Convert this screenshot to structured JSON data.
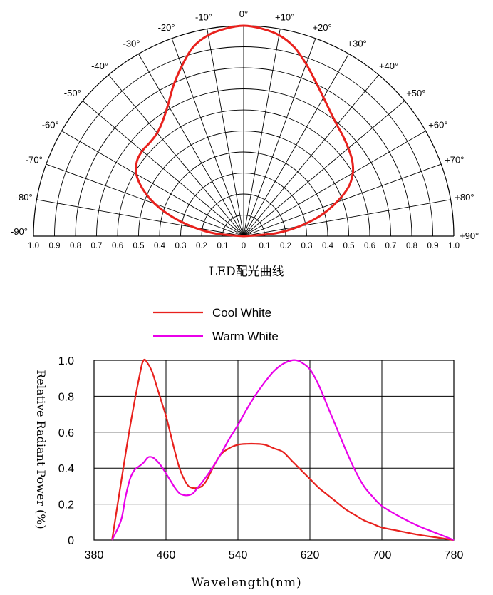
{
  "chart_data": [
    {
      "type": "polar",
      "title": "LED配光曲线",
      "angle_labels": [
        "-90°",
        "-80°",
        "-70°",
        "-60°",
        "-50°",
        "-40°",
        "-30°",
        "-20°",
        "-10°",
        "0°",
        "+10°",
        "+20°",
        "+30°",
        "+40°",
        "+50°",
        "+60°",
        "+70°",
        "+80°",
        "+90°"
      ],
      "angles_deg": [
        -90,
        -80,
        -70,
        -60,
        -50,
        -40,
        -30,
        -20,
        -10,
        0,
        10,
        20,
        30,
        40,
        50,
        60,
        70,
        80,
        90
      ],
      "radial_labels": [
        "1.0",
        "0.9",
        "0.8",
        "0.7",
        "0.6",
        "0.5",
        "0.4",
        "0.3",
        "0.2",
        "0.1",
        "0",
        "0.1",
        "0.2",
        "0.3",
        "0.4",
        "0.5",
        "0.6",
        "0.7",
        "0.8",
        "0.9",
        "1.0"
      ],
      "rlim": [
        0,
        1.0
      ],
      "series": [
        {
          "color": "#e8211d",
          "angles": [
            -90,
            -85,
            -80,
            -75,
            -70,
            -65,
            -60,
            -55,
            -50,
            -45,
            -40,
            -35,
            -30,
            -25,
            -20,
            -15,
            -10,
            -5,
            0,
            5,
            10,
            15,
            20,
            25,
            30,
            35,
            40,
            45,
            50,
            55,
            60,
            65,
            70,
            75,
            80,
            85,
            90
          ],
          "values": [
            0.0,
            0.13,
            0.24,
            0.35,
            0.45,
            0.53,
            0.59,
            0.62,
            0.63,
            0.63,
            0.64,
            0.67,
            0.72,
            0.79,
            0.86,
            0.93,
            0.97,
            0.99,
            1.0,
            0.99,
            0.97,
            0.93,
            0.87,
            0.81,
            0.76,
            0.72,
            0.69,
            0.67,
            0.65,
            0.63,
            0.6,
            0.55,
            0.47,
            0.38,
            0.27,
            0.15,
            0.0
          ]
        }
      ]
    },
    {
      "type": "line",
      "xlabel": "Wavelength(nm)",
      "ylabel": "Relative Radiant Power (%)",
      "xlim": [
        380,
        780
      ],
      "ylim": [
        0,
        1.0
      ],
      "xticks": [
        380,
        460,
        540,
        620,
        700,
        780
      ],
      "yticks": [
        0,
        0.2,
        0.4,
        0.6,
        0.8,
        1.0
      ],
      "ytick_labels": [
        "0",
        "0.2",
        "0.4",
        "0.6",
        "0.8",
        "1.0"
      ],
      "legend_position": "top",
      "series": [
        {
          "name": "Cool White",
          "color": "#e8211d",
          "x": [
            400,
            410,
            420,
            430,
            435,
            440,
            445,
            450,
            455,
            460,
            465,
            470,
            475,
            480,
            485,
            490,
            495,
            500,
            505,
            510,
            520,
            530,
            540,
            550,
            560,
            570,
            580,
            590,
            600,
            610,
            620,
            630,
            640,
            650,
            660,
            670,
            680,
            690,
            700,
            720,
            740,
            760,
            780
          ],
          "y": [
            0.0,
            0.32,
            0.63,
            0.9,
            1.0,
            0.98,
            0.93,
            0.85,
            0.77,
            0.69,
            0.59,
            0.49,
            0.4,
            0.34,
            0.3,
            0.29,
            0.29,
            0.3,
            0.33,
            0.38,
            0.47,
            0.51,
            0.53,
            0.535,
            0.535,
            0.53,
            0.51,
            0.49,
            0.44,
            0.39,
            0.34,
            0.29,
            0.25,
            0.21,
            0.17,
            0.14,
            0.11,
            0.09,
            0.07,
            0.05,
            0.03,
            0.015,
            0.0
          ]
        },
        {
          "name": "Warm White",
          "color": "#e900e9",
          "x": [
            400,
            410,
            415,
            420,
            425,
            430,
            435,
            440,
            445,
            450,
            455,
            460,
            465,
            470,
            475,
            480,
            485,
            490,
            495,
            500,
            510,
            520,
            530,
            540,
            550,
            560,
            570,
            580,
            590,
            600,
            605,
            610,
            620,
            630,
            640,
            650,
            660,
            670,
            680,
            690,
            700,
            720,
            740,
            760,
            780
          ],
          "y": [
            0.0,
            0.11,
            0.24,
            0.34,
            0.39,
            0.41,
            0.43,
            0.46,
            0.46,
            0.44,
            0.41,
            0.37,
            0.33,
            0.29,
            0.26,
            0.25,
            0.25,
            0.26,
            0.29,
            0.32,
            0.39,
            0.47,
            0.56,
            0.64,
            0.73,
            0.81,
            0.88,
            0.94,
            0.98,
            1.0,
            1.0,
            0.99,
            0.95,
            0.86,
            0.74,
            0.62,
            0.5,
            0.39,
            0.3,
            0.24,
            0.19,
            0.13,
            0.08,
            0.04,
            0.0
          ]
        }
      ]
    }
  ]
}
